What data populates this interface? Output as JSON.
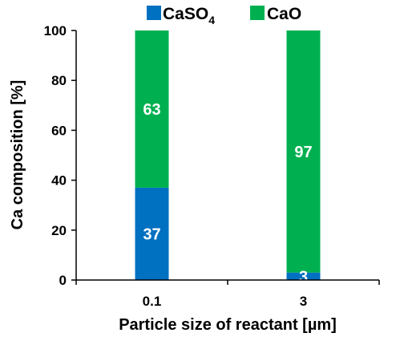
{
  "chart_data": {
    "type": "bar",
    "stacked": true,
    "categories": [
      "0.1",
      "3"
    ],
    "series": [
      {
        "name": "CaSO",
        "name_subscript": "4",
        "color": "#0070C0",
        "values": [
          37,
          3
        ]
      },
      {
        "name": "CaO",
        "color": "#00B050",
        "values": [
          63,
          97
        ]
      }
    ],
    "xlabel": "Particle size of reactant [µm]",
    "ylabel": "Ca composition [%]",
    "ylim": [
      0,
      100
    ],
    "yticks": [
      "0",
      "20",
      "40",
      "60",
      "80",
      "100"
    ],
    "grid": false,
    "legend_position": "top"
  }
}
